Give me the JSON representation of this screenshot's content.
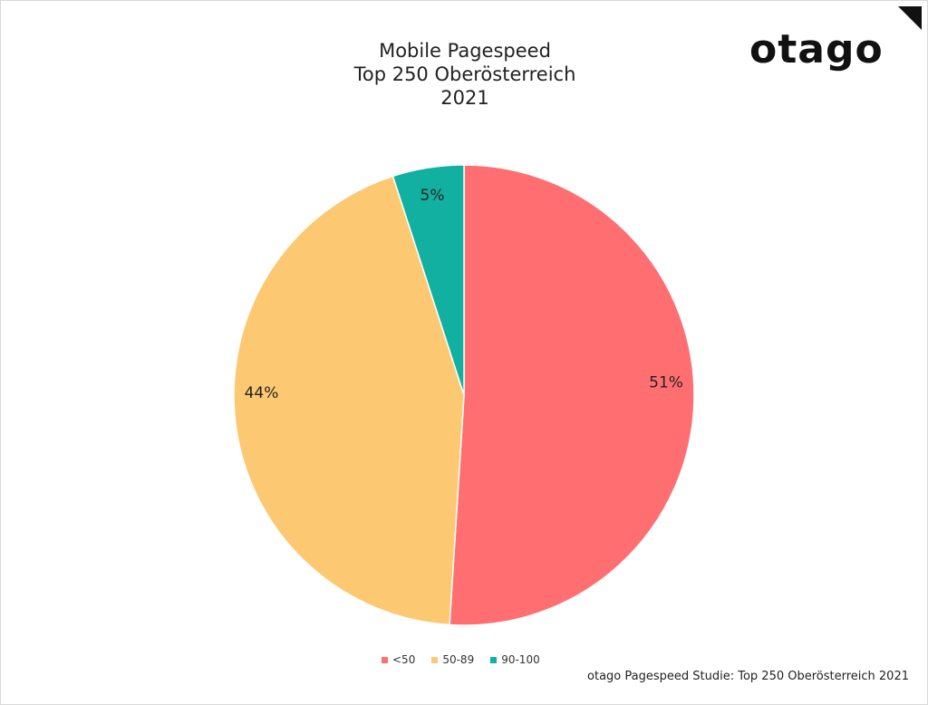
{
  "chart_data": {
    "type": "pie",
    "title_lines": [
      "Mobile Pagespeed",
      "Top 250 Oberösterreich",
      "2021"
    ],
    "categories": [
      "<50",
      "50-89",
      "90-100"
    ],
    "values": [
      51,
      44,
      5
    ],
    "labels": [
      "51%",
      "44%",
      "5%"
    ],
    "colors": [
      "#ff6f71",
      "#fdc872",
      "#12b0a0"
    ],
    "legend_position": "bottom"
  },
  "logo": {
    "text": "otago"
  },
  "source": "otago Pagespeed Studie: Top 250 Oberösterreich 2021"
}
